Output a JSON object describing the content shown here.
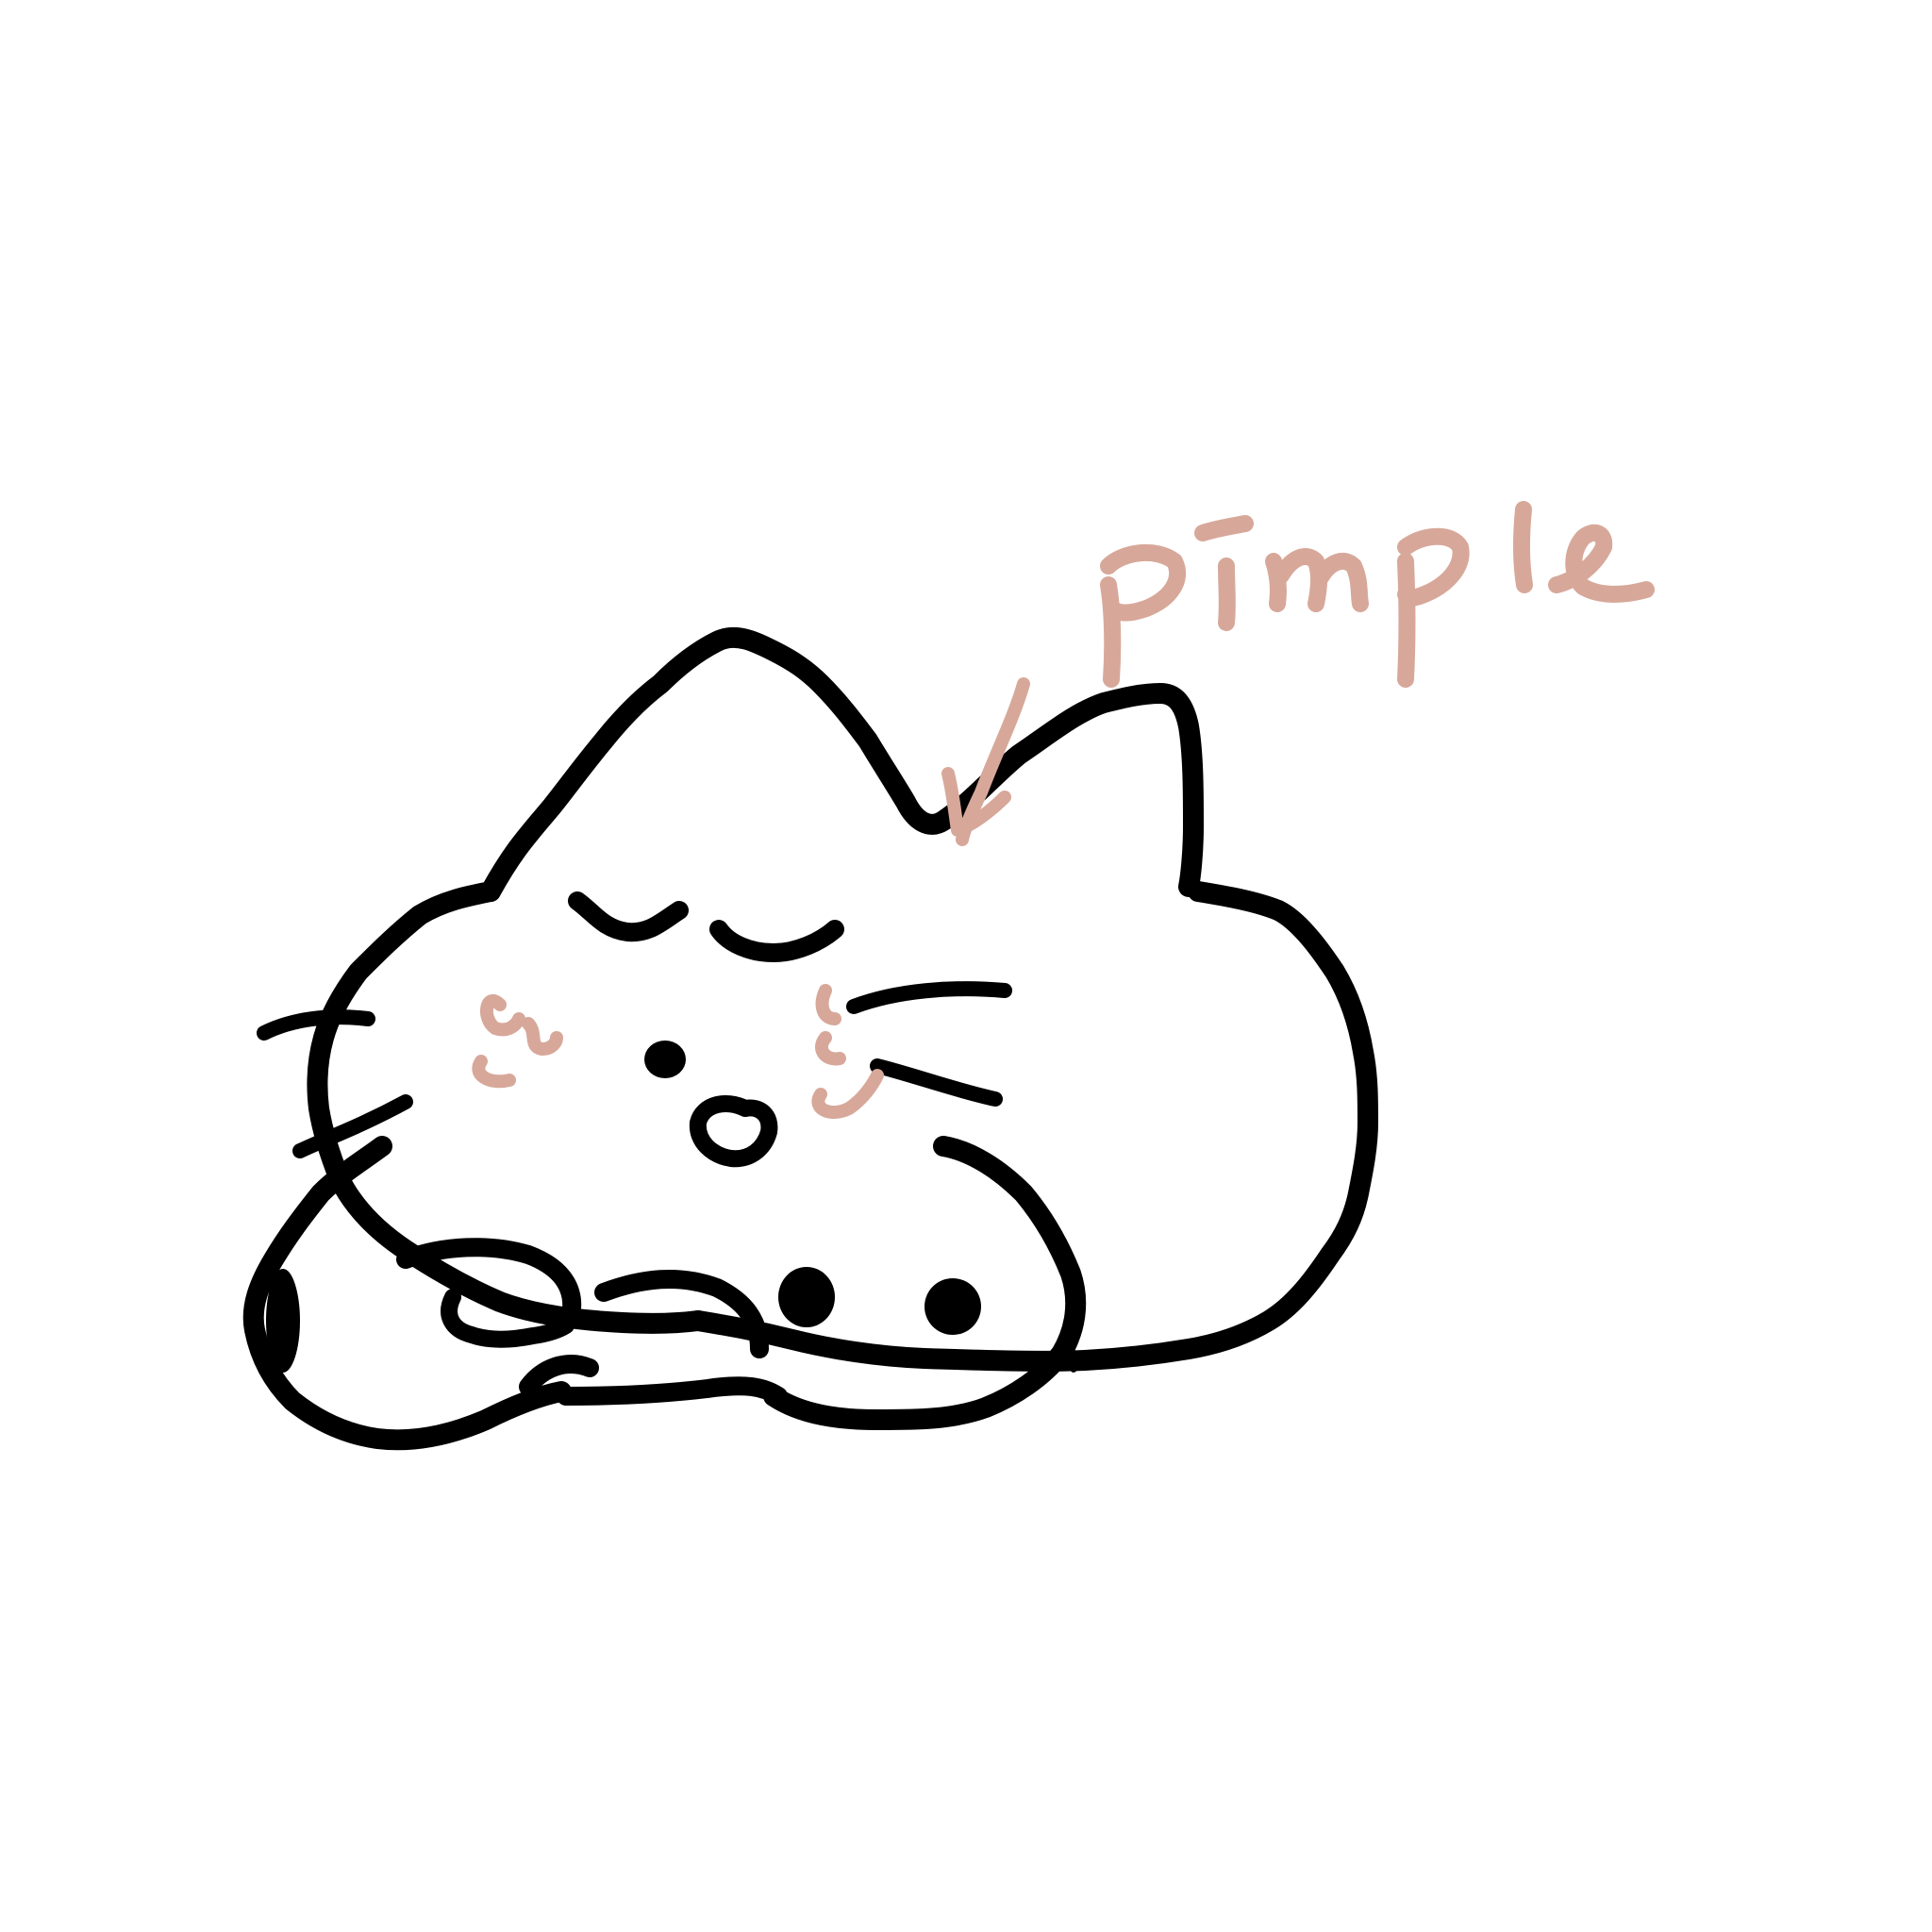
{
  "drawing": {
    "caption": "pimple",
    "subject": "cat-doodle"
  },
  "colors": {
    "background": "#ffffff",
    "ink": "#000000",
    "accent": "#d7a89a"
  }
}
